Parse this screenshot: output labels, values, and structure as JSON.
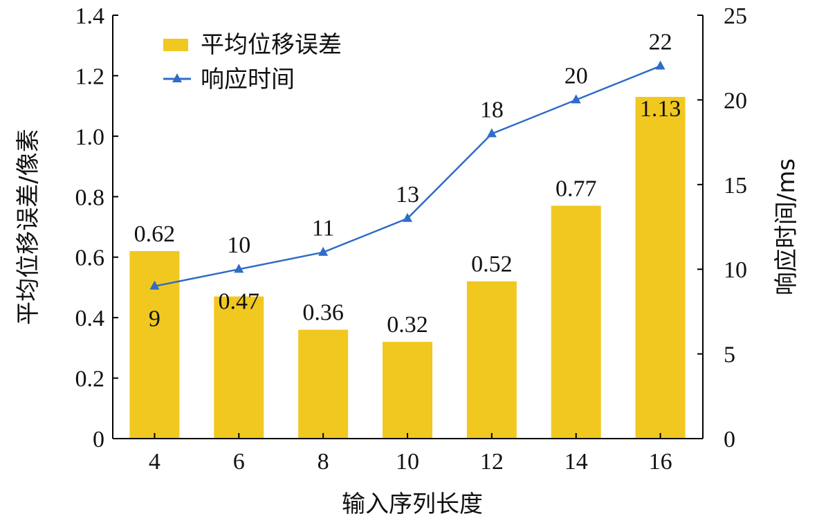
{
  "chart_data": {
    "type": "bar",
    "xlabel": "输入序列长度",
    "categories": [
      "4",
      "6",
      "8",
      "10",
      "12",
      "14",
      "16"
    ],
    "y_left": {
      "label": "平均位移误差/像素",
      "range": [
        0,
        1.4
      ],
      "ticks": [
        "0",
        "0.2",
        "0.4",
        "0.6",
        "0.8",
        "1.0",
        "1.2",
        "1.4"
      ]
    },
    "y_right": {
      "label": "响应时间/ms",
      "range": [
        0,
        25
      ],
      "ticks": [
        "0",
        "5",
        "10",
        "15",
        "20",
        "25"
      ]
    },
    "series": [
      {
        "name": "平均位移误差",
        "type": "bar",
        "axis": "left",
        "color": "#F0C820",
        "values": [
          0.62,
          0.47,
          0.36,
          0.32,
          0.52,
          0.77,
          1.13
        ],
        "labels": [
          "0.62",
          "0.47",
          "0.36",
          "0.32",
          "0.52",
          "0.77",
          "1.13"
        ]
      },
      {
        "name": "响应时间",
        "type": "line",
        "axis": "right",
        "color": "#2F6CC8",
        "marker": "triangle",
        "values": [
          9,
          10,
          11,
          13,
          18,
          20,
          22
        ],
        "labels": [
          "9",
          "10",
          "11",
          "13",
          "18",
          "20",
          "22"
        ]
      }
    ],
    "legend_position": "top-left",
    "grid": false
  }
}
